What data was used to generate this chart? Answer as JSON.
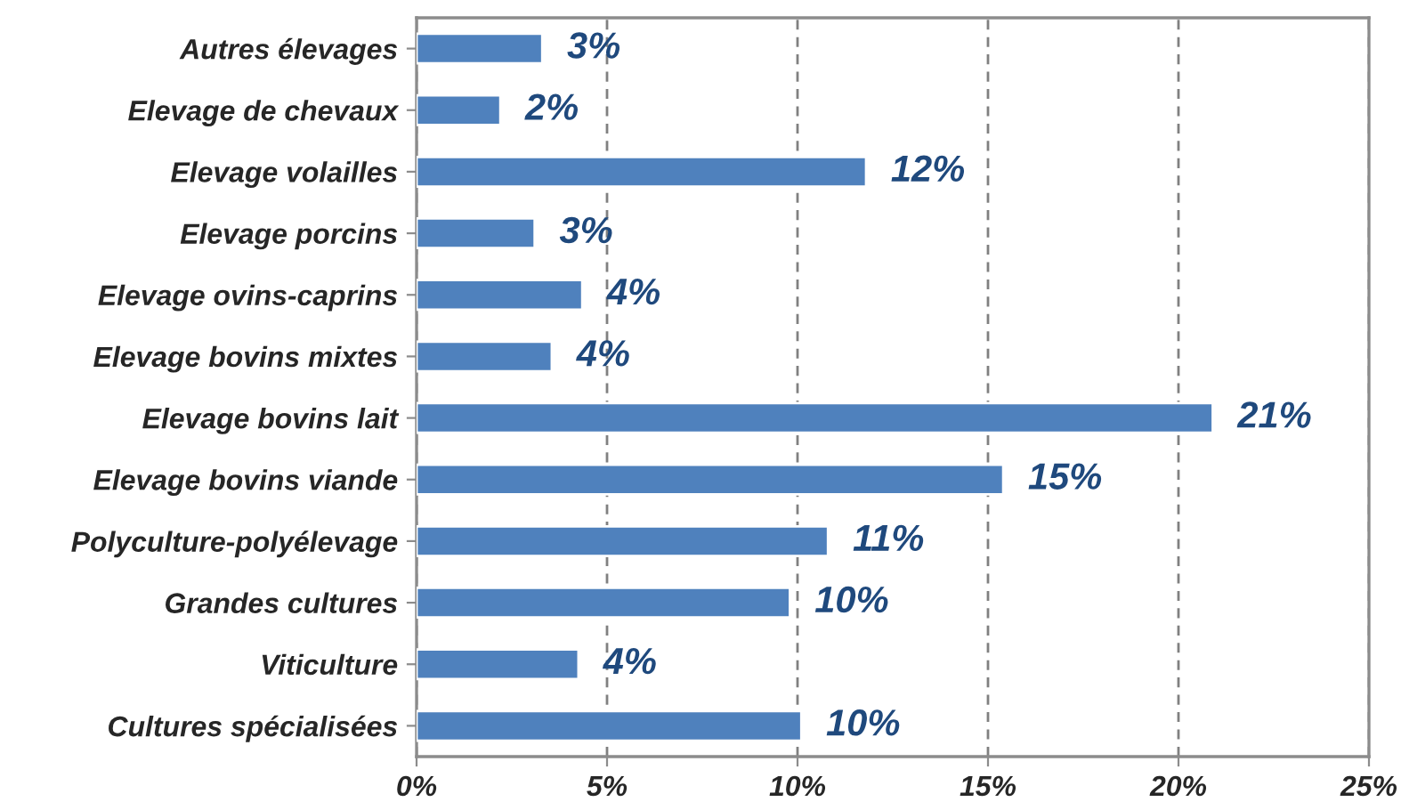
{
  "chart_data": {
    "type": "bar",
    "orientation": "horizontal",
    "categories": [
      "Autres élevages",
      "Elevage de chevaux",
      "Elevage volailles",
      "Elevage porcins",
      "Elevage ovins-caprins",
      "Elevage bovins mixtes",
      "Elevage bovins lait",
      "Elevage bovins viande",
      "Polyculture-polyélevage",
      "Grandes cultures",
      "Viticulture",
      "Cultures spécialisées"
    ],
    "values": [
      3.3,
      2.2,
      11.8,
      3.1,
      4.35,
      3.55,
      20.9,
      15.4,
      10.8,
      9.8,
      4.25,
      10.1
    ],
    "value_labels": [
      "3%",
      "2%",
      "12%",
      "3%",
      "4%",
      "4%",
      "21%",
      "15%",
      "11%",
      "10%",
      "4%",
      "10%"
    ],
    "color": "#4f81bd",
    "xlim": [
      0,
      25
    ],
    "xticks": [
      {
        "value": 0,
        "label": "0%"
      },
      {
        "value": 5,
        "label": "5%"
      },
      {
        "value": 10,
        "label": "10%"
      },
      {
        "value": 15,
        "label": "15%"
      },
      {
        "value": 20,
        "label": "20%"
      },
      {
        "value": 25,
        "label": "25%"
      }
    ],
    "grid": "x",
    "legend": false
  }
}
